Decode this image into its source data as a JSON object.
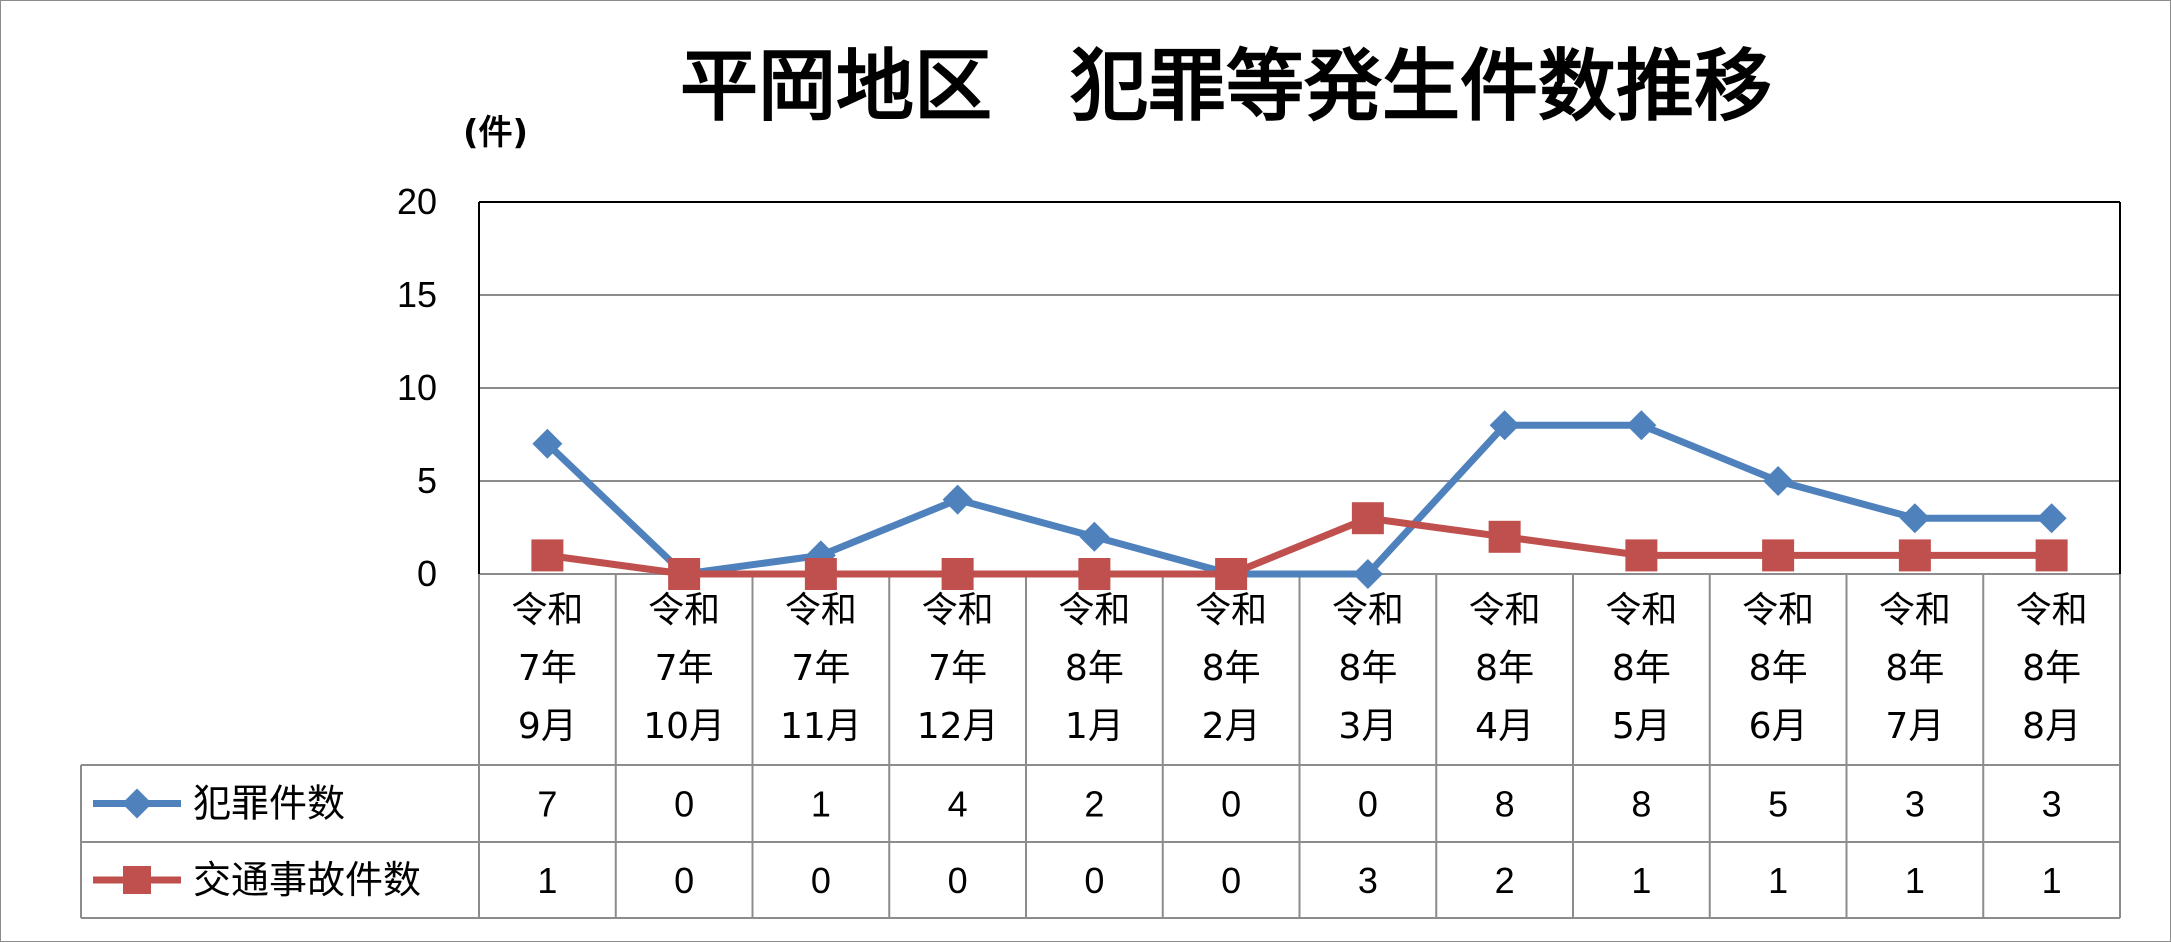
{
  "chart_data": {
    "type": "line",
    "title": "平岡地区　犯罪等発生件数推移",
    "ylabel": "(件)",
    "xlabel": "",
    "ylim": [
      0,
      20
    ],
    "yticks": [
      "0",
      "5",
      "10",
      "15",
      "20"
    ],
    "grid": true,
    "legend": "table-left",
    "categories": [
      [
        "令和",
        "7年",
        "9月"
      ],
      [
        "令和",
        "7年",
        "10月"
      ],
      [
        "令和",
        "7年",
        "11月"
      ],
      [
        "令和",
        "7年",
        "12月"
      ],
      [
        "令和",
        "8年",
        "1月"
      ],
      [
        "令和",
        "8年",
        "2月"
      ],
      [
        "令和",
        "8年",
        "3月"
      ],
      [
        "令和",
        "8年",
        "4月"
      ],
      [
        "令和",
        "8年",
        "5月"
      ],
      [
        "令和",
        "8年",
        "6月"
      ],
      [
        "令和",
        "8年",
        "7月"
      ],
      [
        "令和",
        "8年",
        "8月"
      ]
    ],
    "series": [
      {
        "name": "犯罪件数",
        "color": "#4f81bd",
        "marker": "diamond",
        "values": [
          7,
          0,
          1,
          4,
          2,
          0,
          0,
          8,
          8,
          5,
          3,
          3
        ]
      },
      {
        "name": "交通事故件数",
        "color": "#c0504d",
        "marker": "square",
        "values": [
          1,
          0,
          0,
          0,
          0,
          0,
          3,
          2,
          1,
          1,
          1,
          1
        ]
      }
    ]
  }
}
